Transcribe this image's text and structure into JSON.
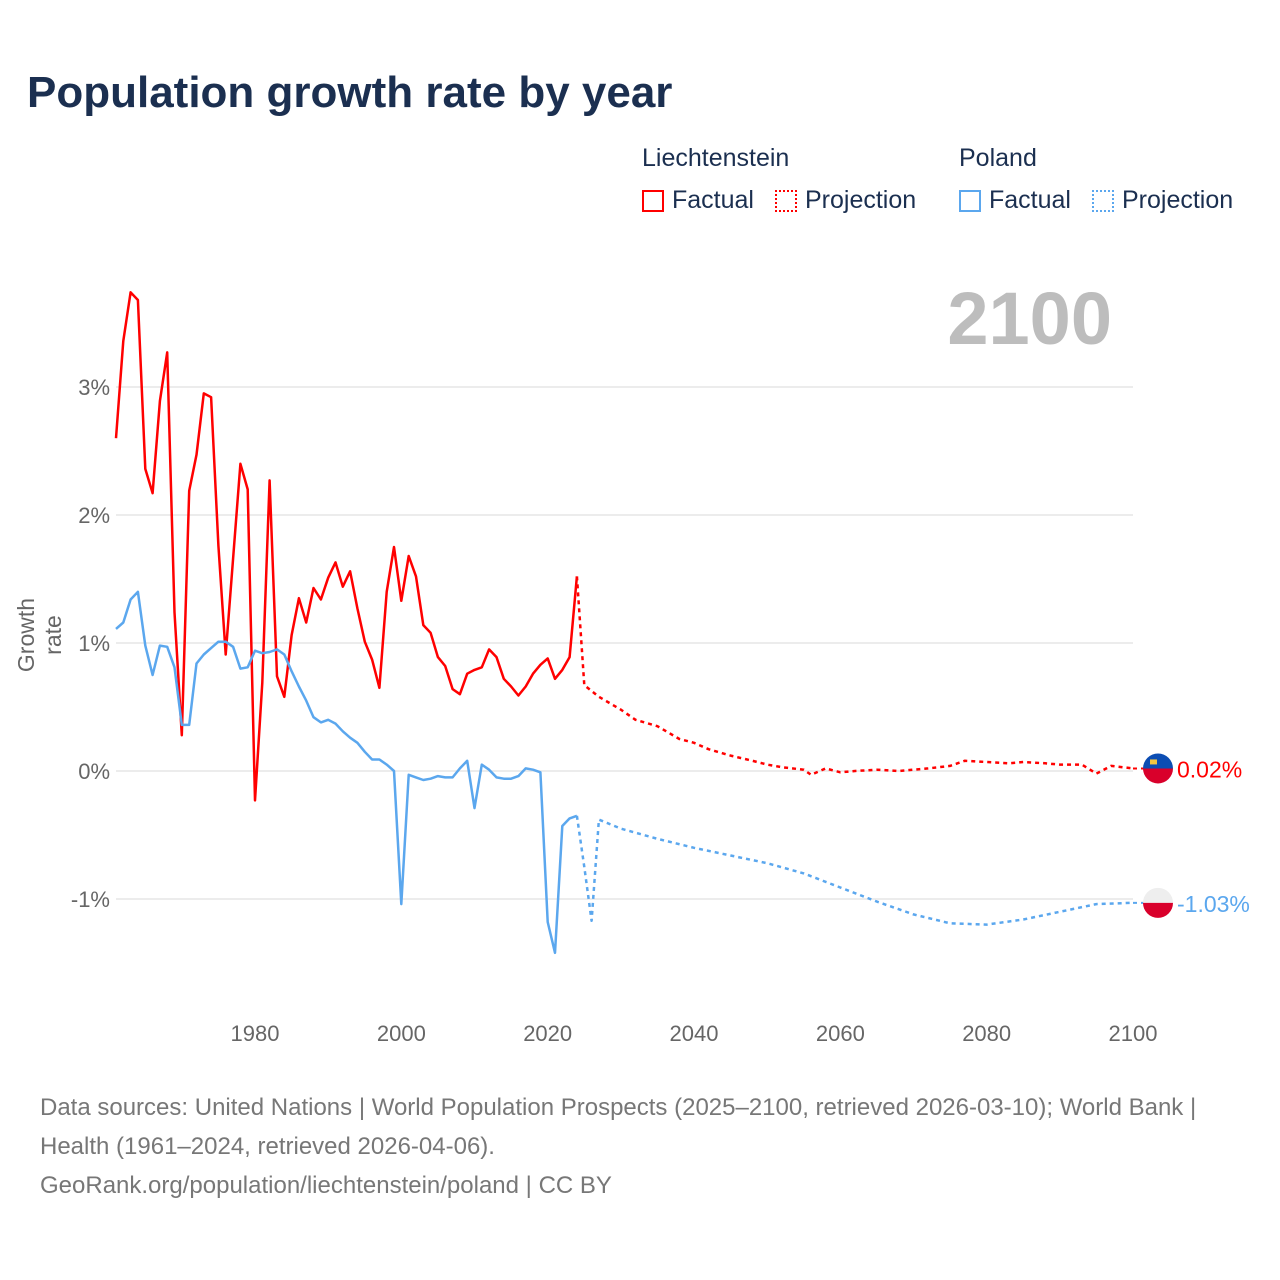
{
  "title": "Population growth rate by year",
  "legend": {
    "groups": [
      {
        "name": "Liechtenstein",
        "items": [
          "Factual",
          "Projection"
        ],
        "color": "#ff0000"
      },
      {
        "name": "Poland",
        "items": [
          "Factual",
          "Projection"
        ],
        "color": "#5ba7ee"
      }
    ]
  },
  "current_year": "2100",
  "footer": {
    "sources": "Data sources: United Nations | World Population Prospects (2025–2100, retrieved 2026-03-10); World Bank | Health (1961–2024, retrieved 2026-04-06).",
    "link": "GeoRank.org/population/liechtenstein/poland | CC BY"
  },
  "chart_data": {
    "type": "line",
    "title": "Population growth rate by year",
    "xlabel": "",
    "ylabel": "Growth rate",
    "xlim": [
      1961,
      2100
    ],
    "ylim": [
      -1.8,
      3.8
    ],
    "x_ticks": [
      "1980",
      "2000",
      "2020",
      "2040",
      "2060",
      "2080",
      "2100"
    ],
    "x_tick_values": [
      1980,
      2000,
      2020,
      2040,
      2060,
      2080,
      2100
    ],
    "y_ticks": [
      "-1%",
      "0%",
      "1%",
      "2%",
      "3%"
    ],
    "y_tick_values": [
      -1,
      0,
      1,
      2,
      3
    ],
    "grid": true,
    "legend_position": "top-right",
    "series": [
      {
        "name": "Liechtenstein Factual",
        "color": "#ff0000",
        "dashed": false,
        "x": [
          1961,
          1962,
          1963,
          1964,
          1965,
          1966,
          1967,
          1968,
          1969,
          1970,
          1971,
          1972,
          1973,
          1974,
          1975,
          1976,
          1977,
          1978,
          1979,
          1980,
          1981,
          1982,
          1983,
          1984,
          1985,
          1986,
          1987,
          1988,
          1989,
          1990,
          1991,
          1992,
          1993,
          1994,
          1995,
          1996,
          1997,
          1998,
          1999,
          2000,
          2001,
          2002,
          2003,
          2004,
          2005,
          2006,
          2007,
          2008,
          2009,
          2010,
          2011,
          2012,
          2013,
          2014,
          2015,
          2016,
          2017,
          2018,
          2019,
          2020,
          2021,
          2022,
          2023,
          2024
        ],
        "y": [
          2.6,
          3.36,
          3.74,
          3.68,
          2.36,
          2.17,
          2.89,
          3.27,
          1.24,
          0.28,
          2.19,
          2.47,
          2.95,
          2.92,
          1.76,
          0.91,
          1.66,
          2.4,
          2.2,
          -0.23,
          0.69,
          2.27,
          0.74,
          0.58,
          1.06,
          1.35,
          1.16,
          1.43,
          1.34,
          1.51,
          1.63,
          1.44,
          1.56,
          1.27,
          1.01,
          0.87,
          0.65,
          1.4,
          1.75,
          1.33,
          1.68,
          1.52,
          1.14,
          1.08,
          0.89,
          0.82,
          0.64,
          0.6,
          0.76,
          0.79,
          0.81,
          0.95,
          0.89,
          0.72,
          0.66,
          0.59,
          0.66,
          0.76,
          0.83,
          0.88,
          0.72,
          0.79,
          0.89,
          1.52
        ]
      },
      {
        "name": "Liechtenstein Projection",
        "color": "#ff0000",
        "dashed": true,
        "x": [
          2024,
          2025,
          2027,
          2030,
          2032,
          2035,
          2038,
          2040,
          2042,
          2045,
          2048,
          2050,
          2052,
          2055,
          2056,
          2058,
          2060,
          2062,
          2065,
          2068,
          2070,
          2072,
          2075,
          2077,
          2080,
          2083,
          2085,
          2088,
          2090,
          2093,
          2095,
          2097,
          2100
        ],
        "y": [
          1.52,
          0.67,
          0.58,
          0.48,
          0.4,
          0.35,
          0.25,
          0.22,
          0.17,
          0.12,
          0.08,
          0.05,
          0.03,
          0.01,
          -0.03,
          0.02,
          -0.01,
          0.0,
          0.01,
          0.0,
          0.01,
          0.02,
          0.04,
          0.08,
          0.07,
          0.06,
          0.07,
          0.06,
          0.05,
          0.05,
          -0.02,
          0.04,
          0.02
        ]
      },
      {
        "name": "Poland Factual",
        "color": "#5ba7ee",
        "dashed": false,
        "x": [
          1961,
          1962,
          1963,
          1964,
          1965,
          1966,
          1967,
          1968,
          1969,
          1970,
          1971,
          1972,
          1973,
          1974,
          1975,
          1976,
          1977,
          1978,
          1979,
          1980,
          1981,
          1982,
          1983,
          1984,
          1985,
          1986,
          1987,
          1988,
          1989,
          1990,
          1991,
          1992,
          1993,
          1994,
          1995,
          1996,
          1997,
          1998,
          1999,
          2000,
          2001,
          2002,
          2003,
          2004,
          2005,
          2006,
          2007,
          2008,
          2009,
          2010,
          2011,
          2012,
          2013,
          2014,
          2015,
          2016,
          2017,
          2018,
          2019,
          2020,
          2021,
          2022,
          2023,
          2024
        ],
        "y": [
          1.11,
          1.16,
          1.34,
          1.4,
          0.98,
          0.75,
          0.98,
          0.97,
          0.81,
          0.36,
          0.36,
          0.84,
          0.91,
          0.96,
          1.01,
          1.01,
          0.97,
          0.8,
          0.81,
          0.94,
          0.92,
          0.93,
          0.95,
          0.91,
          0.78,
          0.66,
          0.55,
          0.42,
          0.38,
          0.4,
          0.37,
          0.31,
          0.26,
          0.22,
          0.15,
          0.09,
          0.09,
          0.05,
          0.0,
          -1.04,
          -0.03,
          -0.05,
          -0.07,
          -0.06,
          -0.04,
          -0.05,
          -0.05,
          0.02,
          0.08,
          -0.29,
          0.05,
          0.01,
          -0.05,
          -0.06,
          -0.06,
          -0.04,
          0.02,
          0.01,
          -0.01,
          -1.18,
          -1.42,
          -0.43,
          -0.37,
          -0.35
        ]
      },
      {
        "name": "Poland Projection",
        "color": "#5ba7ee",
        "dashed": true,
        "x": [
          2024,
          2025,
          2026,
          2027,
          2030,
          2035,
          2040,
          2045,
          2050,
          2055,
          2060,
          2065,
          2070,
          2075,
          2080,
          2085,
          2090,
          2095,
          2100
        ],
        "y": [
          -0.35,
          -0.75,
          -1.17,
          -0.38,
          -0.45,
          -0.53,
          -0.6,
          -0.66,
          -0.72,
          -0.8,
          -0.91,
          -1.02,
          -1.12,
          -1.19,
          -1.2,
          -1.16,
          -1.1,
          -1.04,
          -1.03
        ]
      }
    ],
    "end_labels": [
      {
        "country": "Liechtenstein",
        "value": "0.02%",
        "color": "#ff0000"
      },
      {
        "country": "Poland",
        "value": "-1.03%",
        "color": "#5ba7ee"
      }
    ]
  }
}
